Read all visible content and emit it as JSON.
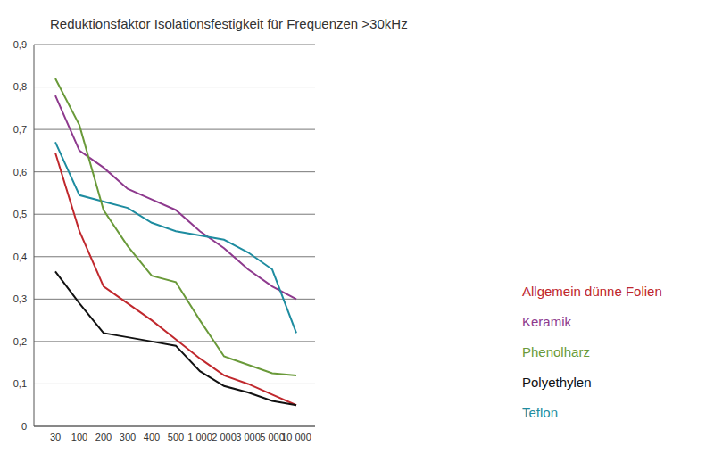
{
  "chart_data": {
    "type": "line",
    "title": "Reduktionsfaktor Isolationsfestigkeit für Frequenzen >30kHz",
    "categories": [
      "30",
      "100",
      "200",
      "300",
      "400",
      "500",
      "1 000",
      "2 000",
      "3 000",
      "5 000",
      "10 000"
    ],
    "series": [
      {
        "name": "Keramik",
        "color": "#8e3a8e",
        "values": [
          0.78,
          0.65,
          0.61,
          0.56,
          0.535,
          0.51,
          0.46,
          0.42,
          0.37,
          0.33,
          0.3
        ]
      },
      {
        "name": "Teflon",
        "color": "#1e8ca0",
        "values": [
          0.67,
          0.545,
          0.53,
          0.515,
          0.48,
          0.46,
          0.45,
          0.44,
          0.41,
          0.37,
          0.22
        ]
      },
      {
        "name": "Phenolharz",
        "color": "#6a9a3a",
        "values": [
          0.82,
          0.71,
          0.51,
          0.425,
          0.355,
          0.34,
          0.25,
          0.165,
          0.145,
          0.125,
          0.12
        ]
      },
      {
        "name": "Allgemein dünne Folien",
        "color": "#c0282d",
        "values": [
          0.645,
          0.46,
          0.33,
          0.29,
          0.25,
          0.205,
          0.16,
          0.12,
          0.1,
          0.075,
          0.05
        ]
      },
      {
        "name": "Polyethylen",
        "color": "#111111",
        "values": [
          0.365,
          0.29,
          0.22,
          0.21,
          0.2,
          0.19,
          0.13,
          0.095,
          0.08,
          0.06,
          0.05
        ]
      }
    ],
    "ylim": [
      0,
      0.9
    ],
    "yticks": [
      0,
      {
        "value": 0.1,
        "label": "0,1"
      },
      {
        "value": 0.2,
        "label": "0,2"
      },
      {
        "value": 0.3,
        "label": "0,3"
      },
      {
        "value": 0.4,
        "label": "0,4"
      },
      {
        "value": 0.5,
        "label": "0,5"
      },
      {
        "value": 0.6,
        "label": "0,6"
      },
      {
        "value": 0.7,
        "label": "0,7"
      },
      {
        "value": 0.8,
        "label": "0,8"
      },
      {
        "value": 0.9,
        "label": "0,9"
      }
    ],
    "grid": true,
    "legend": "right"
  }
}
